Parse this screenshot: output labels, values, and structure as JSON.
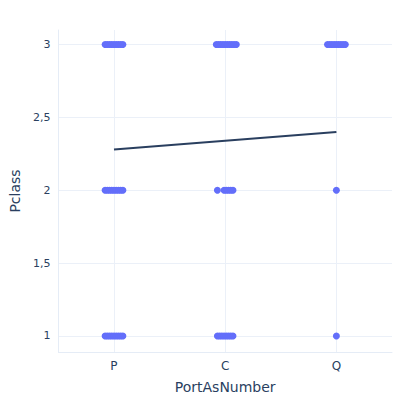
{
  "chart_data": {
    "type": "scatter",
    "x_label": "PortAsNumber",
    "y_label": "Pclass",
    "xlim": [
      0.5,
      3.5
    ],
    "xticks": [
      {
        "value": 1,
        "label": "P"
      },
      {
        "value": 2,
        "label": "C"
      },
      {
        "value": 3,
        "label": "Q"
      }
    ],
    "ylim": [
      0.89,
      3.1
    ],
    "yticks": [
      1,
      {
        "value": 1.5,
        "label": "1,5"
      },
      2,
      {
        "value": 2.5,
        "label": "2,5"
      },
      3
    ],
    "grid": true,
    "series": [
      {
        "type": "scatter",
        "color": "#636efa",
        "marker": "circle",
        "x": [
          0.92,
          0.94,
          0.96,
          0.98,
          1.0,
          1.02,
          1.04,
          1.06,
          1.08,
          1.92,
          1.94,
          1.96,
          1.98,
          2.0,
          2.02,
          2.04,
          2.06,
          2.08,
          2.1,
          2.92,
          2.94,
          2.96,
          2.98,
          3.0,
          3.02,
          3.04,
          3.06,
          3.08,
          0.92,
          0.94,
          0.96,
          0.98,
          1.0,
          1.02,
          1.04,
          1.06,
          1.08,
          1.93,
          1.99,
          2.01,
          2.03,
          2.05,
          2.07,
          3.0,
          0.92,
          0.94,
          0.96,
          0.98,
          1.0,
          1.02,
          1.04,
          1.06,
          1.08,
          1.93,
          1.95,
          1.97,
          1.99,
          2.01,
          2.03,
          2.05,
          2.07,
          3.0
        ],
        "values": [
          3,
          3,
          3,
          3,
          3,
          3,
          3,
          3,
          3,
          3,
          3,
          3,
          3,
          3,
          3,
          3,
          3,
          3,
          3,
          3,
          3,
          3,
          3,
          3,
          3,
          3,
          3,
          3,
          2,
          2,
          2,
          2,
          2,
          2,
          2,
          2,
          2,
          2,
          2,
          2,
          2,
          2,
          2,
          2,
          1,
          1,
          1,
          1,
          1,
          1,
          1,
          1,
          1,
          1,
          1,
          1,
          1,
          1,
          1,
          1,
          1,
          1
        ]
      },
      {
        "type": "line",
        "color": "#2a3f5f",
        "line_style": "solid",
        "x": [
          1,
          3
        ],
        "values": [
          2.28,
          2.4
        ]
      }
    ]
  }
}
